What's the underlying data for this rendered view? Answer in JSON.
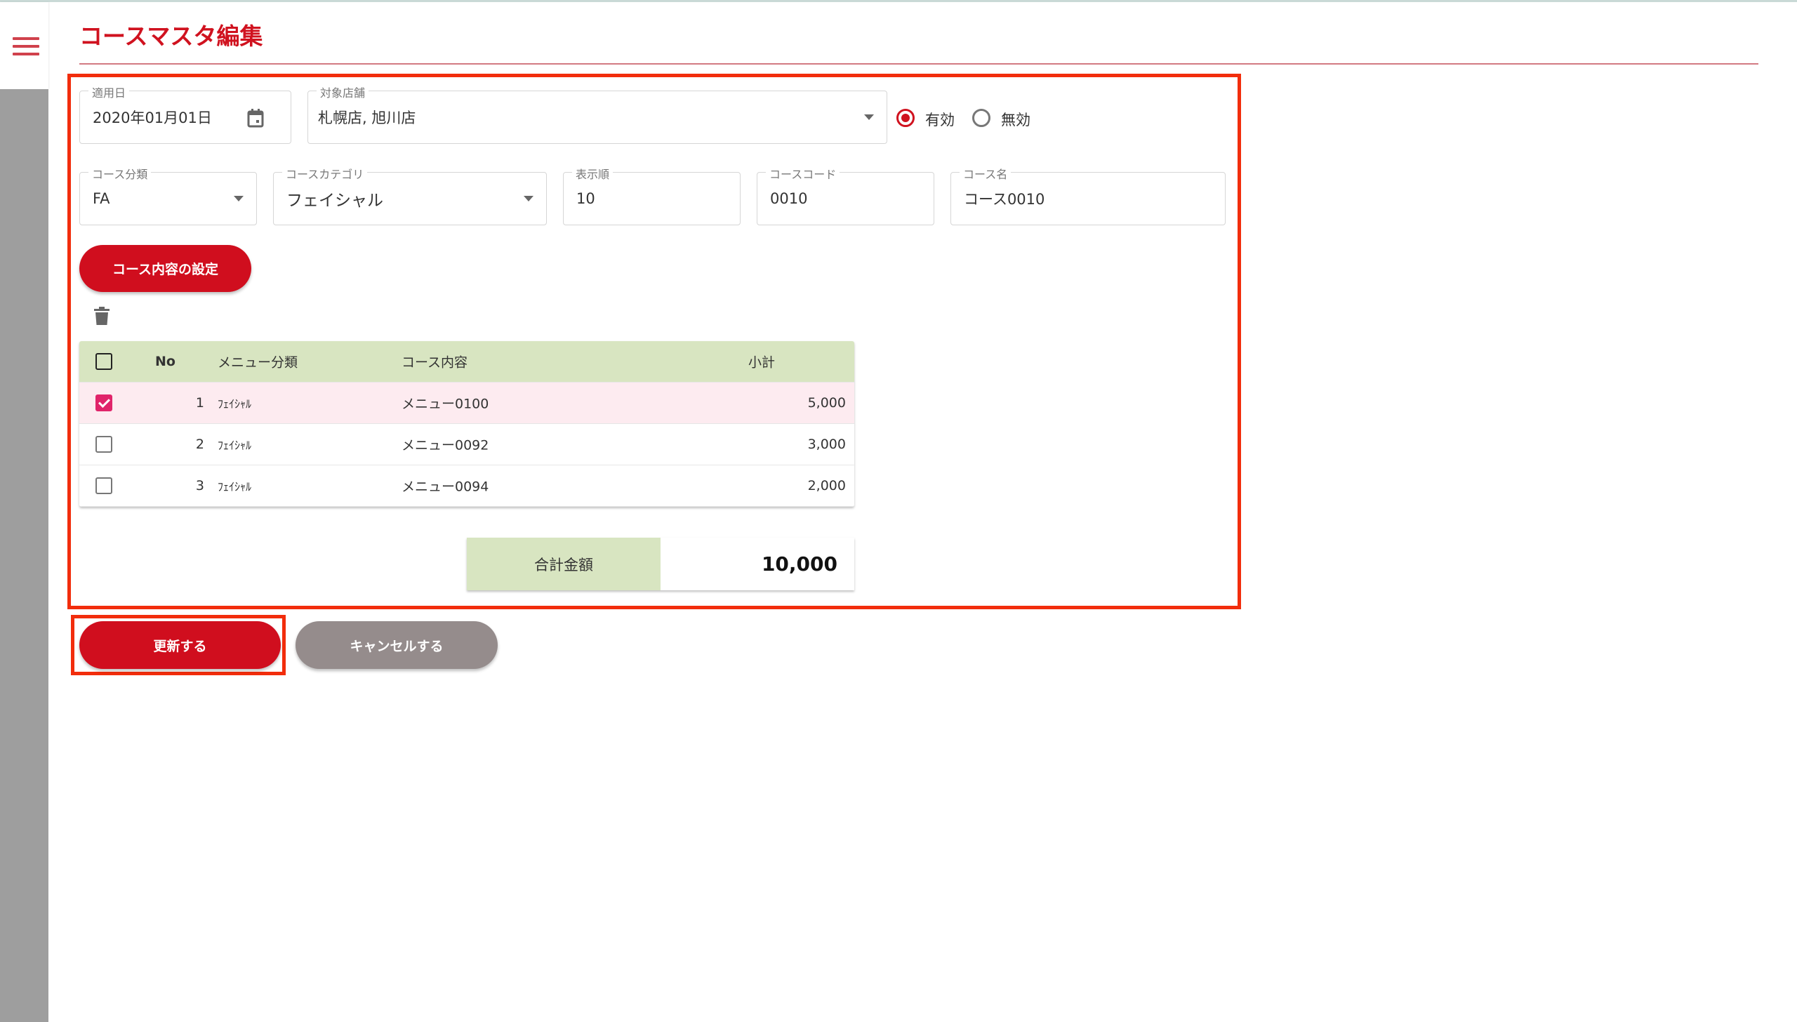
{
  "header": {
    "title": "コースマスタ編集",
    "menu_icon": "hamburger-icon"
  },
  "form": {
    "apply_date": {
      "label": "適用日",
      "value": "2020年01月01日"
    },
    "stores": {
      "label": "対象店舗",
      "value": "札幌店, 旭川店"
    },
    "status": {
      "options": [
        "有効",
        "無効"
      ],
      "selected": "有効"
    },
    "course_class": {
      "label": "コース分類",
      "value": "FA"
    },
    "course_category": {
      "label": "コースカテゴリ",
      "value": "フェイシャル"
    },
    "display_order": {
      "label": "表示順",
      "value": "10"
    },
    "course_code": {
      "label": "コースコード",
      "value": "0010"
    },
    "course_name": {
      "label": "コース名",
      "value": "コース0010"
    },
    "set_content_button": "コース内容の設定"
  },
  "table": {
    "headers": {
      "no": "No",
      "category": "メニュー分類",
      "content": "コース内容",
      "subtotal": "小計"
    },
    "rows": [
      {
        "no": "1",
        "category": "ﾌｪｲｼｬﾙ",
        "content": "メニュー0100",
        "subtotal": "5,000",
        "checked": true
      },
      {
        "no": "2",
        "category": "ﾌｪｲｼｬﾙ",
        "content": "メニュー0092",
        "subtotal": "3,000",
        "checked": false
      },
      {
        "no": "3",
        "category": "ﾌｪｲｼｬﾙ",
        "content": "メニュー0094",
        "subtotal": "2,000",
        "checked": false
      }
    ]
  },
  "total": {
    "label": "合計金額",
    "value": "10,000"
  },
  "actions": {
    "update": "更新する",
    "cancel": "キャンセルする"
  },
  "colors": {
    "accent": "#d00e1e",
    "highlight": "#f22d0c",
    "table_header": "#d8e5c1",
    "selected_row": "#fdebf0"
  }
}
